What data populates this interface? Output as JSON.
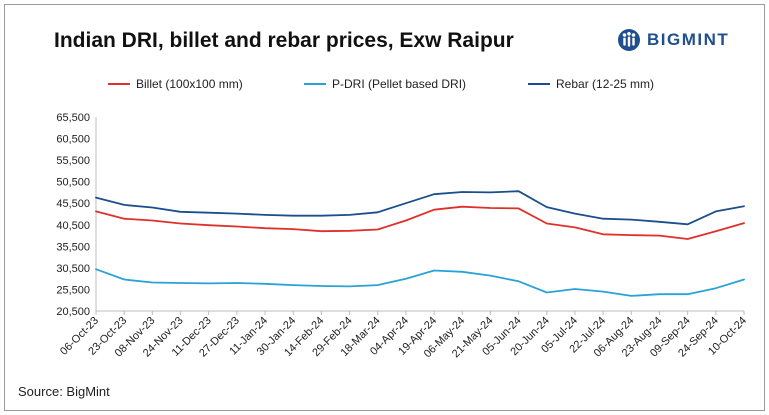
{
  "title": "Indian DRI, billet and rebar prices, Exw Raipur",
  "brand": {
    "name": "BIGMINT",
    "icon": "bigmint-logo-icon",
    "color": "#1f4f8c"
  },
  "source": "Source: BigMint",
  "chart_data": {
    "type": "line",
    "title": "Indian DRI, billet and rebar prices, Exw Raipur",
    "xlabel": "",
    "ylabel": "",
    "ylim": [
      20500,
      65500
    ],
    "yticks": [
      "20,500",
      "25,500",
      "30,500",
      "35,500",
      "40,500",
      "45,500",
      "50,500",
      "55,500",
      "60,500",
      "65,500"
    ],
    "ytick_values": [
      20500,
      25500,
      30500,
      35500,
      40500,
      45500,
      50500,
      55500,
      60500,
      65500
    ],
    "categories": [
      "06-Oct-23",
      "23-Oct-23",
      "08-Nov-23",
      "24-Nov-23",
      "11-Dec-23",
      "27-Dec-23",
      "11-Jan-24",
      "30-Jan-24",
      "14-Feb-24",
      "29-Feb-24",
      "18-Mar-24",
      "04-Apr-24",
      "19-Apr-24",
      "06-May-24",
      "21-May-24",
      "05-Jun-24",
      "20-Jun-24",
      "05-Jul-24",
      "22-Jul-24",
      "06-Aug-24",
      "23-Aug-24",
      "09-Sep-24",
      "24-Sep-24",
      "10-Oct-24"
    ],
    "grid": false,
    "legend_position": "top",
    "series": [
      {
        "name": "Billet (100x100 mm)",
        "color": "#e0302a",
        "values": [
          43600,
          41900,
          41500,
          40800,
          40400,
          40100,
          39700,
          39500,
          39000,
          39100,
          39400,
          41500,
          44000,
          44700,
          44400,
          44300,
          40800,
          39900,
          38300,
          38100,
          38000,
          37200,
          39000,
          40900
        ]
      },
      {
        "name": "P-DRI (Pellet based DRI)",
        "color": "#29a3d6",
        "values": [
          30200,
          27800,
          27100,
          27000,
          26900,
          27000,
          26800,
          26500,
          26300,
          26200,
          26500,
          28000,
          29900,
          29600,
          28700,
          27400,
          24800,
          25600,
          25000,
          24000,
          24400,
          24400,
          25800,
          27800
        ]
      },
      {
        "name": "Rebar (12-25 mm)",
        "color": "#1a4e8c",
        "values": [
          46800,
          45100,
          44500,
          43500,
          43300,
          43100,
          42800,
          42600,
          42600,
          42800,
          43400,
          45500,
          47600,
          48100,
          48000,
          48300,
          44600,
          43100,
          41900,
          41700,
          41200,
          40600,
          43600,
          44800
        ]
      }
    ]
  }
}
